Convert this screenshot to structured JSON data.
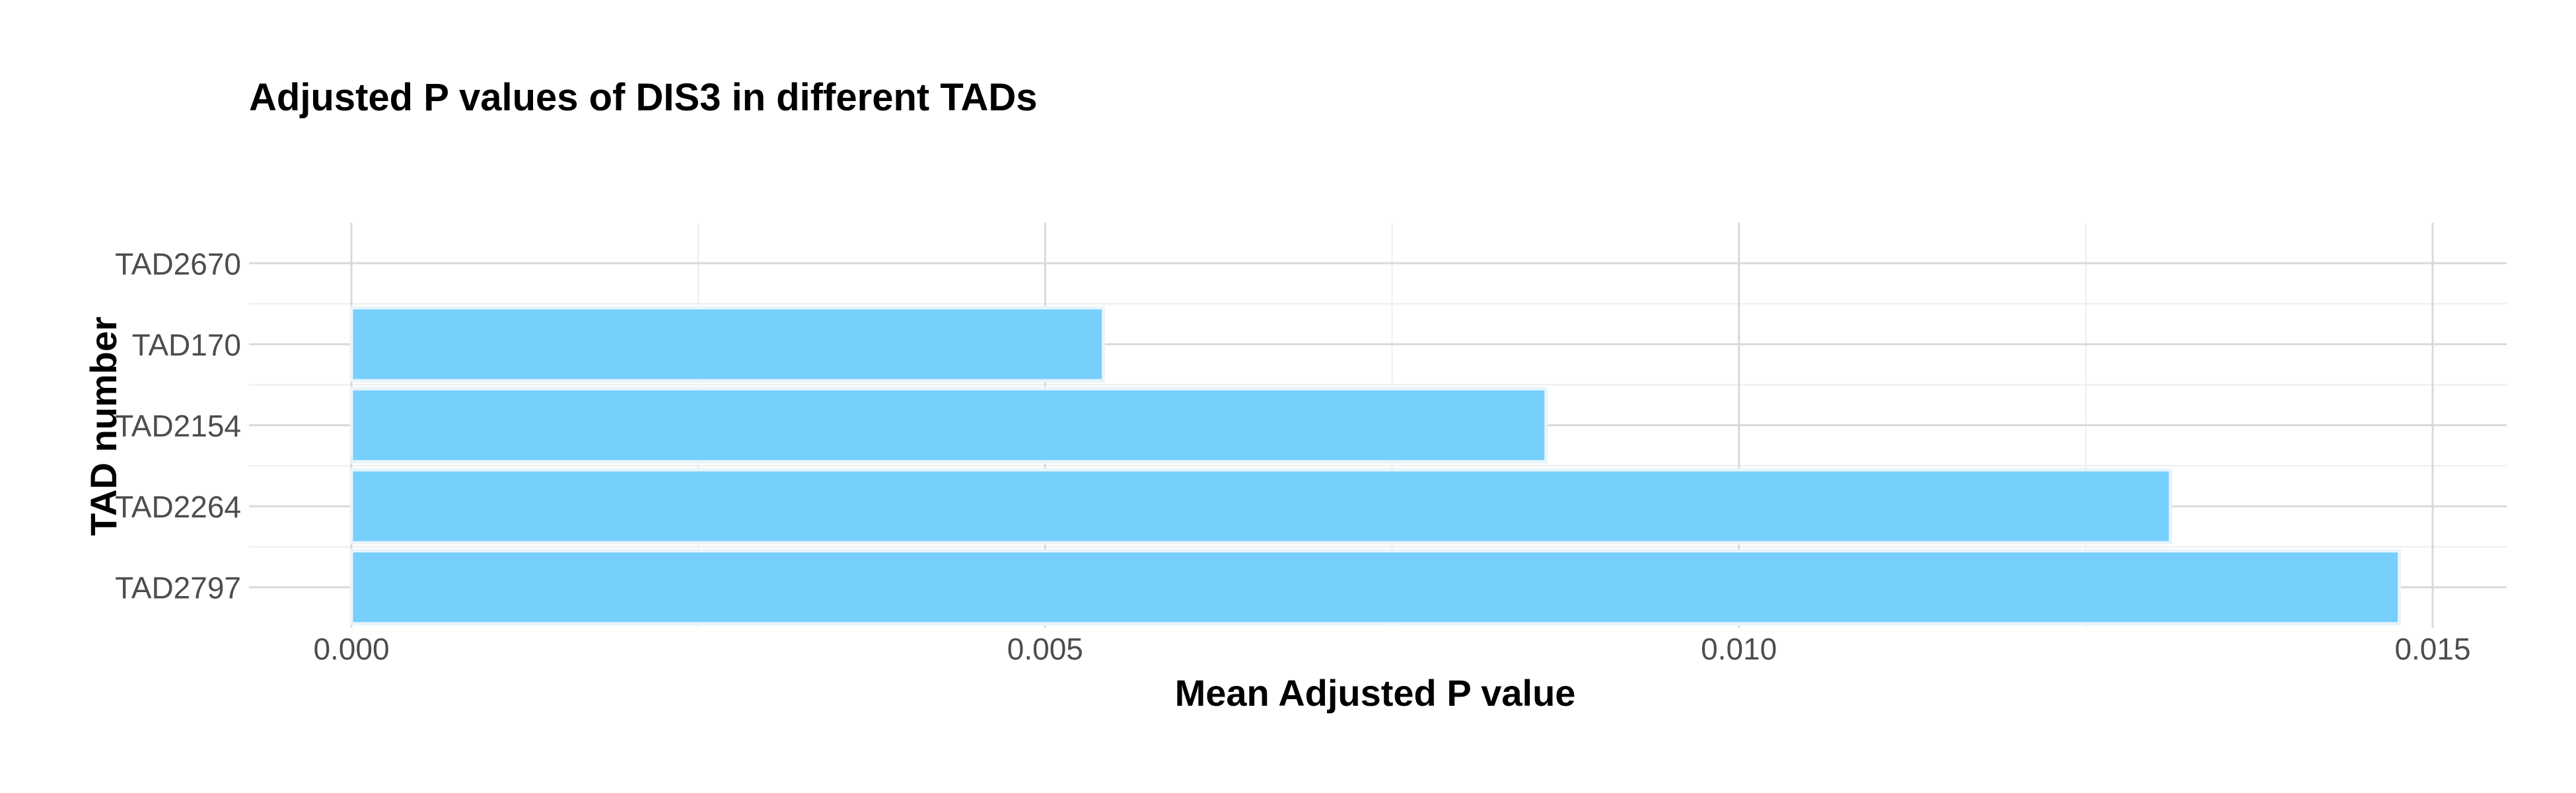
{
  "chart_data": {
    "type": "bar",
    "orientation": "horizontal",
    "title": "Adjusted P values of DIS3 in different TADs",
    "xlabel": "Mean Adjusted P value",
    "ylabel": "TAD number",
    "categories": [
      "TAD2670",
      "TAD170",
      "TAD2154",
      "TAD2264",
      "TAD2797"
    ],
    "values": [
      0,
      0.00542,
      0.00861,
      0.01311,
      0.01476
    ],
    "xlim": [
      0,
      0.015
    ],
    "xticks": [
      0,
      0.005,
      0.01,
      0.015
    ],
    "xtick_labels": [
      "0.000",
      "0.005",
      "0.010",
      "0.015"
    ],
    "grid": true,
    "legend": "none",
    "bar_color": "#74CEFC",
    "bar_edge_color": "#E8F4FB",
    "grid_major_color": "#D9D9D9",
    "grid_minor_color": "#EDEDED"
  }
}
